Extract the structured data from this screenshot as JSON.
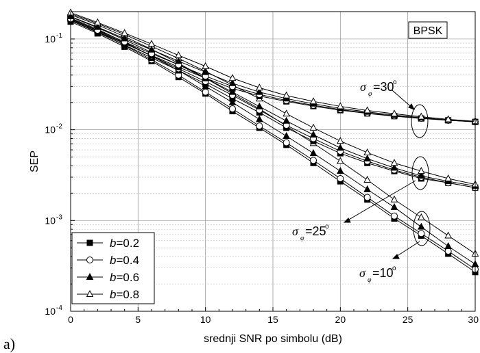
{
  "figure_label": "a)",
  "chart_data": {
    "type": "line",
    "xlabel": "srednji SNR po simbolu (dB)",
    "ylabel": "SEP",
    "xlim": [
      0,
      30
    ],
    "ylim": [
      0.0001,
      0.2
    ],
    "yscale": "log",
    "grid": true,
    "x_ticks": [
      "0",
      "5",
      "10",
      "15",
      "20",
      "25",
      "30"
    ],
    "y_ticks": [
      {
        "base": "10",
        "exp": "-1",
        "value": 0.1
      },
      {
        "base": "10",
        "exp": "-2",
        "value": 0.01
      },
      {
        "base": "10",
        "exp": "-3",
        "value": 0.001
      },
      {
        "base": "10",
        "exp": "-4",
        "value": 0.0001
      }
    ],
    "box_label": "BPSK",
    "legend": {
      "placement": "bottom-left",
      "entries": [
        {
          "prefix": "b",
          "text": "=0.2",
          "marker": "square-filled"
        },
        {
          "prefix": "b",
          "text": "=0.4",
          "marker": "circle-open"
        },
        {
          "prefix": "b",
          "text": "=0.6",
          "marker": "triangle-filled"
        },
        {
          "prefix": "b",
          "text": "=0.8",
          "marker": "triangle-open"
        }
      ]
    },
    "annotations": [
      {
        "sigma": "σ",
        "sub": "φ",
        "text": "=30",
        "deg": "o"
      },
      {
        "sigma": "σ",
        "sub": "φ",
        "text": "=25",
        "deg": "o"
      },
      {
        "sigma": "σ",
        "sub": "φ",
        "text": "=10",
        "deg": "o"
      }
    ],
    "x": [
      0,
      2,
      4,
      6,
      8,
      10,
      12,
      14,
      16,
      18,
      20,
      22,
      24,
      26,
      28,
      30
    ],
    "groups": [
      {
        "sigma_deg": 10,
        "series": [
          {
            "b": 0.2,
            "marker": "square-filled",
            "values": [
              0.155,
              0.115,
              0.082,
              0.057,
              0.038,
              0.025,
              0.016,
              0.0105,
              0.0068,
              0.0043,
              0.0027,
              0.0017,
              0.00105,
              0.00068,
              0.00043,
              0.00027
            ]
          },
          {
            "b": 0.4,
            "marker": "circle-open",
            "values": [
              0.16,
              0.12,
              0.085,
              0.059,
              0.04,
              0.026,
              0.017,
              0.011,
              0.0072,
              0.0046,
              0.0029,
              0.0018,
              0.00112,
              0.00072,
              0.00046,
              0.00029
            ]
          },
          {
            "b": 0.6,
            "marker": "triangle-filled",
            "values": [
              0.17,
              0.128,
              0.092,
              0.065,
              0.045,
              0.03,
              0.02,
              0.013,
              0.0085,
              0.0055,
              0.0035,
              0.0022,
              0.0014,
              0.00085,
              0.00052,
              0.00033
            ]
          },
          {
            "b": 0.8,
            "marker": "triangle-open",
            "values": [
              0.185,
              0.143,
              0.106,
              0.077,
              0.054,
              0.037,
              0.025,
              0.017,
              0.011,
              0.0071,
              0.0045,
              0.0028,
              0.0017,
              0.00108,
              0.00068,
              0.00043
            ]
          }
        ]
      },
      {
        "sigma_deg": 25,
        "series": [
          {
            "b": 0.2,
            "marker": "square-filled",
            "values": [
              0.16,
              0.118,
              0.086,
              0.062,
              0.045,
              0.032,
              0.022,
              0.0155,
              0.0105,
              0.0075,
              0.0055,
              0.0043,
              0.0035,
              0.0029,
              0.0026,
              0.0023
            ]
          },
          {
            "b": 0.4,
            "marker": "circle-open",
            "values": [
              0.165,
              0.123,
              0.09,
              0.065,
              0.047,
              0.034,
              0.024,
              0.0165,
              0.0112,
              0.008,
              0.0058,
              0.0045,
              0.0036,
              0.003,
              0.0026,
              0.0023
            ]
          },
          {
            "b": 0.6,
            "marker": "triangle-filled",
            "values": [
              0.175,
              0.133,
              0.098,
              0.071,
              0.052,
              0.037,
              0.026,
              0.018,
              0.0125,
              0.0088,
              0.0063,
              0.0048,
              0.0038,
              0.0031,
              0.0027,
              0.0024
            ]
          },
          {
            "b": 0.8,
            "marker": "triangle-open",
            "values": [
              0.19,
              0.148,
              0.112,
              0.083,
              0.061,
              0.044,
              0.031,
              0.022,
              0.015,
              0.0105,
              0.0075,
              0.0056,
              0.0043,
              0.0035,
              0.0029,
              0.0025
            ]
          }
        ]
      },
      {
        "sigma_deg": 30,
        "series": [
          {
            "b": 0.2,
            "marker": "square-filled",
            "values": [
              0.162,
              0.12,
              0.089,
              0.066,
              0.049,
              0.037,
              0.0285,
              0.0235,
              0.0205,
              0.0182,
              0.0164,
              0.0151,
              0.0141,
              0.0133,
              0.0127,
              0.0122
            ]
          },
          {
            "b": 0.4,
            "marker": "circle-open",
            "values": [
              0.167,
              0.125,
              0.093,
              0.069,
              0.052,
              0.039,
              0.03,
              0.0245,
              0.021,
              0.0186,
              0.0167,
              0.0153,
              0.0142,
              0.0134,
              0.0127,
              0.0122
            ]
          },
          {
            "b": 0.6,
            "marker": "triangle-filled",
            "values": [
              0.177,
              0.135,
              0.101,
              0.076,
              0.057,
              0.043,
              0.0325,
              0.026,
              0.022,
              0.0193,
              0.0172,
              0.0157,
              0.0145,
              0.0136,
              0.0128,
              0.0123
            ]
          },
          {
            "b": 0.8,
            "marker": "triangle-open",
            "values": [
              0.195,
              0.152,
              0.116,
              0.088,
              0.066,
              0.05,
              0.037,
              0.029,
              0.0238,
              0.0205,
              0.0181,
              0.0163,
              0.015,
              0.0139,
              0.013,
              0.0124
            ]
          }
        ]
      }
    ]
  }
}
